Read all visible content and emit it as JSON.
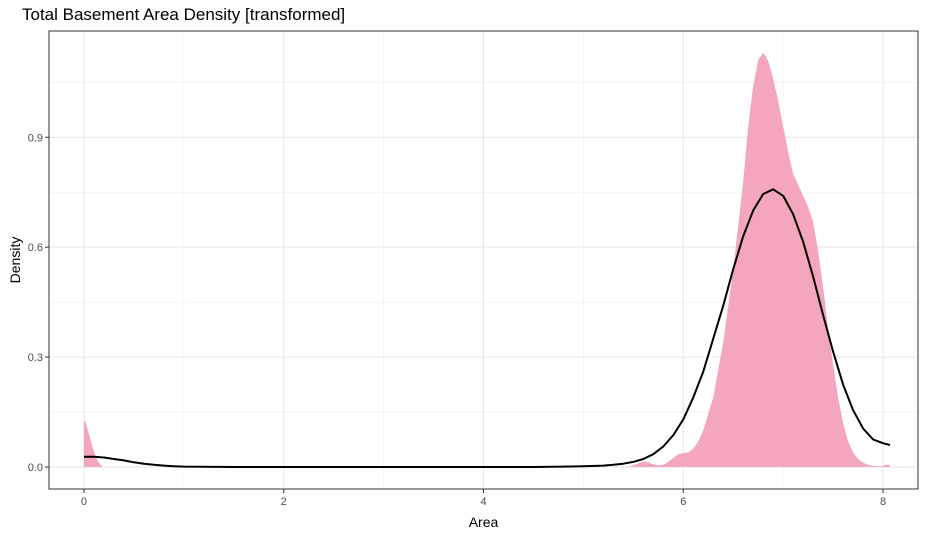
{
  "chart_data": {
    "type": "area",
    "title": "Total Basement Area Density [transformed]",
    "xlabel": "Area",
    "ylabel": "Density",
    "xlim": [
      -0.35,
      8.35
    ],
    "ylim": [
      -0.06,
      1.19
    ],
    "x_ticks": [
      {
        "value": 0,
        "label": "0"
      },
      {
        "value": 2,
        "label": "2"
      },
      {
        "value": 4,
        "label": "4"
      },
      {
        "value": 6,
        "label": "6"
      },
      {
        "value": 8,
        "label": "8"
      }
    ],
    "y_ticks": [
      {
        "value": 0.0,
        "label": "0.0"
      },
      {
        "value": 0.3,
        "label": "0.3"
      },
      {
        "value": 0.6,
        "label": "0.6"
      },
      {
        "value": 0.9,
        "label": "0.9"
      }
    ],
    "x_minor_gridlines": [
      1,
      3,
      5,
      7
    ],
    "y_minor_gridlines": [
      0.15,
      0.45,
      0.75,
      1.05
    ],
    "grid": true,
    "series": [
      {
        "kind": "filled-density",
        "color": "#f4a7bc",
        "x": [
          0.0,
          0.02,
          0.05,
          0.08,
          0.11,
          0.14,
          0.17,
          0.19,
          5.45,
          5.5,
          5.55,
          5.6,
          5.65,
          5.7,
          5.75,
          5.8,
          5.85,
          5.9,
          5.95,
          6.0,
          6.05,
          6.1,
          6.15,
          6.2,
          6.3,
          6.4,
          6.5,
          6.6,
          6.65,
          6.7,
          6.75,
          6.8,
          6.83,
          6.86,
          6.9,
          6.95,
          7.0,
          7.05,
          7.1,
          7.15,
          7.2,
          7.25,
          7.3,
          7.35,
          7.4,
          7.45,
          7.5,
          7.55,
          7.6,
          7.65,
          7.7,
          7.75,
          7.8,
          7.85,
          7.9,
          7.95,
          8.0,
          8.02,
          8.05,
          8.07
        ],
        "y": [
          0.13,
          0.12,
          0.09,
          0.06,
          0.035,
          0.015,
          0.005,
          0.0,
          0.0,
          0.004,
          0.01,
          0.015,
          0.013,
          0.007,
          0.004,
          0.006,
          0.014,
          0.025,
          0.035,
          0.038,
          0.04,
          0.05,
          0.07,
          0.1,
          0.19,
          0.34,
          0.54,
          0.78,
          0.93,
          1.04,
          1.11,
          1.13,
          1.12,
          1.1,
          1.06,
          1.0,
          0.93,
          0.86,
          0.8,
          0.77,
          0.74,
          0.71,
          0.67,
          0.59,
          0.49,
          0.38,
          0.28,
          0.19,
          0.12,
          0.07,
          0.04,
          0.022,
          0.012,
          0.006,
          0.003,
          0.002,
          0.002,
          0.006,
          0.006,
          0.004
        ]
      },
      {
        "kind": "normal-curve",
        "color": "#000000",
        "x": [
          0.0,
          0.1,
          0.2,
          0.3,
          0.4,
          0.5,
          0.6,
          0.7,
          0.8,
          0.9,
          1.0,
          1.5,
          2.0,
          2.5,
          3.0,
          3.5,
          4.0,
          4.5,
          4.8,
          5.0,
          5.2,
          5.3,
          5.4,
          5.5,
          5.6,
          5.7,
          5.8,
          5.9,
          6.0,
          6.1,
          6.2,
          6.3,
          6.4,
          6.5,
          6.6,
          6.7,
          6.8,
          6.9,
          7.0,
          7.1,
          7.2,
          7.3,
          7.4,
          7.5,
          7.6,
          7.7,
          7.8,
          7.9,
          8.0,
          8.07
        ],
        "y": [
          0.028,
          0.028,
          0.026,
          0.022,
          0.018,
          0.013,
          0.009,
          0.006,
          0.004,
          0.002,
          0.001,
          0.0,
          0.0,
          0.0,
          0.0,
          0.0,
          0.0,
          0.0,
          0.001,
          0.002,
          0.004,
          0.006,
          0.009,
          0.014,
          0.022,
          0.035,
          0.056,
          0.087,
          0.13,
          0.19,
          0.26,
          0.35,
          0.44,
          0.54,
          0.63,
          0.7,
          0.745,
          0.758,
          0.74,
          0.69,
          0.615,
          0.52,
          0.415,
          0.315,
          0.225,
          0.155,
          0.105,
          0.075,
          0.065,
          0.06
        ]
      }
    ]
  }
}
